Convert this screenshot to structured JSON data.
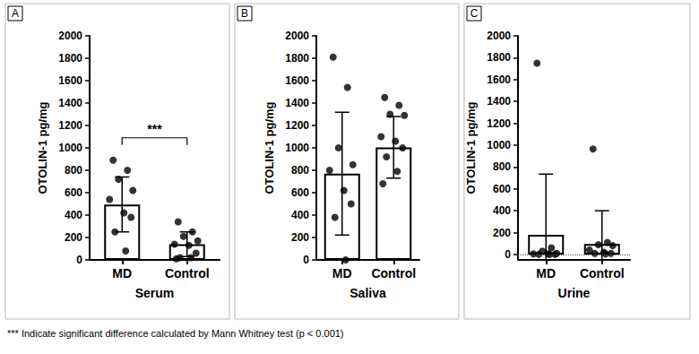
{
  "chart_data": [
    {
      "type": "bar",
      "title": "A",
      "xlabel": "Serum",
      "ylabel": "OTOLIN-1 pg/mg",
      "categories": [
        "MD",
        "Control"
      ],
      "values": [
        495,
        140
      ],
      "error": [
        245,
        110
      ],
      "points": [
        [
          890,
          800,
          720,
          620,
          540,
          420,
          380,
          250,
          80
        ],
        [
          340,
          250,
          210,
          170,
          140,
          130,
          60,
          20,
          20,
          10
        ]
      ],
      "annotations": [
        {
          "text": "***",
          "from": "MD",
          "to": "Control"
        }
      ],
      "color": "#ffffff",
      "marker": "circle",
      "ylim": [
        0,
        2000
      ],
      "yticks": [
        0,
        200,
        400,
        600,
        800,
        1000,
        1200,
        1400,
        1600,
        1800,
        2000
      ],
      "grid": false
    },
    {
      "type": "bar",
      "title": "B",
      "xlabel": "Saliva",
      "ylabel": "OTOLIN-1 pg/mg",
      "categories": [
        "MD",
        "Control"
      ],
      "values": [
        770,
        1005
      ],
      "error": [
        548,
        275
      ],
      "points": [
        [
          1810,
          1540,
          1000,
          850,
          800,
          620,
          500,
          380,
          0
        ],
        [
          1450,
          1380,
          1300,
          1290,
          1100,
          1060,
          1000,
          920,
          790,
          680
        ]
      ],
      "color": "#ffffff",
      "marker": "circle",
      "ylim": [
        0,
        2000
      ],
      "yticks": [
        0,
        200,
        400,
        600,
        800,
        1000,
        1200,
        1400,
        1600,
        1800,
        2000
      ],
      "grid": false
    },
    {
      "type": "bar",
      "title": "C",
      "xlabel": "Urine",
      "ylabel": "OTOLIN-1 pg/mg",
      "categories": [
        "MD",
        "Control"
      ],
      "values": [
        180,
        95
      ],
      "error": [
        555,
        305
      ],
      "points": [
        [
          1750,
          60,
          30,
          10,
          5,
          5,
          0,
          0,
          0
        ],
        [
          965,
          110,
          90,
          80,
          40,
          20,
          10,
          10,
          5
        ]
      ],
      "color": "#ffffff",
      "marker": "circle",
      "ylim": [
        -50,
        2000
      ],
      "yticks": [
        0,
        200,
        400,
        600,
        800,
        1000,
        1200,
        1400,
        1600,
        1800,
        2000
      ],
      "grid": false
    }
  ],
  "footnote": "*** Indicate significant difference calculated by Mann Whitney test (p < 0.001)"
}
